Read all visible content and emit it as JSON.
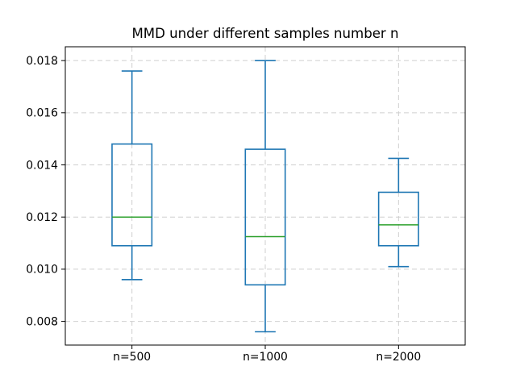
{
  "title": "MMD under different samples number n",
  "chart_data": {
    "type": "boxplot",
    "title": "MMD under different samples number n",
    "categories": [
      "n=500",
      "n=1000",
      "n=2000"
    ],
    "series": [
      {
        "name": "n=500",
        "whisker_low": 0.0096,
        "q1": 0.0109,
        "median": 0.012,
        "q3": 0.0148,
        "whisker_high": 0.0176
      },
      {
        "name": "n=1000",
        "whisker_low": 0.0076,
        "q1": 0.0094,
        "median": 0.01125,
        "q3": 0.0146,
        "whisker_high": 0.018
      },
      {
        "name": "n=2000",
        "whisker_low": 0.0101,
        "q1": 0.0109,
        "median": 0.0117,
        "q3": 0.01295,
        "whisker_high": 0.01425
      }
    ],
    "positions": [
      1,
      2,
      3
    ],
    "xlim": [
      0.5,
      3.5
    ],
    "ylim": [
      0.00709,
      0.01853
    ],
    "yticks": [
      0.008,
      0.01,
      0.012,
      0.014,
      0.016,
      0.018
    ],
    "ytick_labels": [
      "0.008",
      "0.010",
      "0.012",
      "0.014",
      "0.016",
      "0.018"
    ],
    "xlabel": "",
    "ylabel": "",
    "grid": {
      "visible": true,
      "linestyle": "dashed",
      "axis": "both"
    },
    "legend": null,
    "colors": {
      "box_edge": "#1f77b4",
      "median": "#2ca02c",
      "grid": "#cfcfcf",
      "frame": "#000000",
      "tick_text": "#000000",
      "background": "#ffffff"
    }
  }
}
